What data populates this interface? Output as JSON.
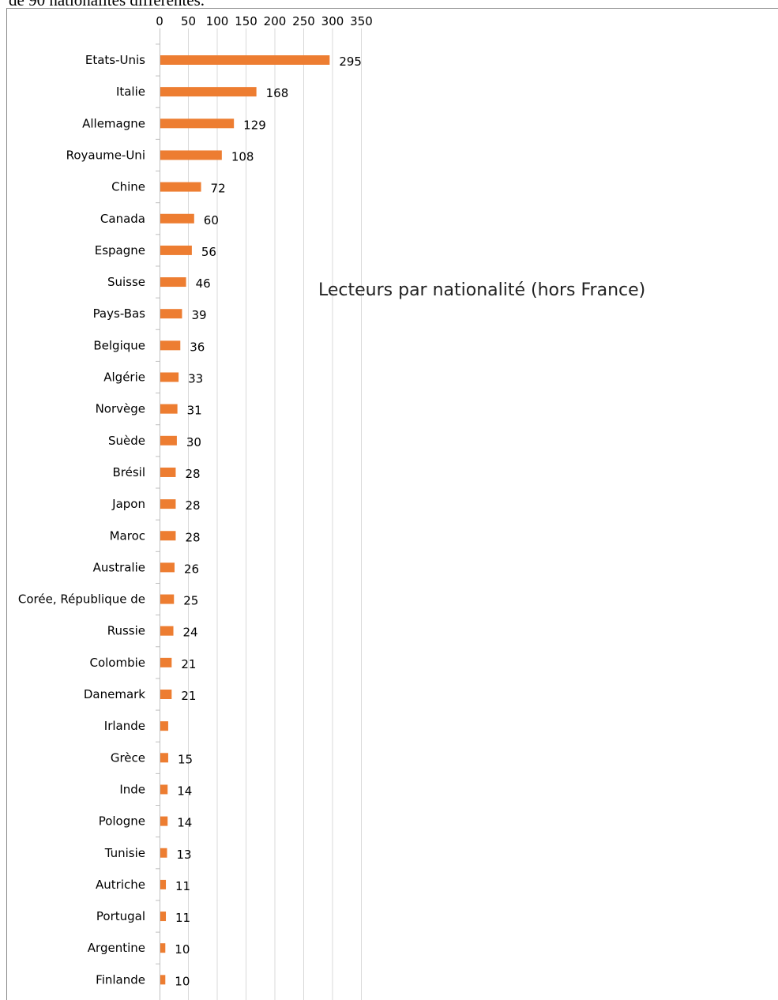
{
  "header_text": "de 90 nationalités différentes.",
  "chart_data": {
    "type": "bar",
    "orientation": "horizontal",
    "title": "Lecteurs par nationalité (hors France)",
    "xlim": [
      0,
      350
    ],
    "xticks": [
      0,
      50,
      100,
      150,
      200,
      250,
      300,
      350
    ],
    "axis_position": "top",
    "grid": true,
    "bar_color": "#ed7d31",
    "categories": [
      "Etats-Unis",
      "Italie",
      "Allemagne",
      "Royaume-Uni",
      "Chine",
      "Canada",
      "Espagne",
      "Suisse",
      "Pays-Bas",
      "Belgique",
      "Algérie",
      "Norvège",
      "Suède",
      "Brésil",
      "Japon",
      "Maroc",
      "Australie",
      "Corée, République de",
      "Russie",
      "Colombie",
      "Danemark",
      "Irlande",
      "Grèce",
      "Inde",
      "Pologne",
      "Tunisie",
      "Autriche",
      "Portugal",
      "Argentine",
      "Finlande"
    ],
    "values": [
      295,
      168,
      129,
      108,
      72,
      60,
      56,
      46,
      39,
      36,
      33,
      31,
      30,
      28,
      28,
      28,
      26,
      25,
      24,
      21,
      21,
      15,
      15,
      14,
      14,
      13,
      11,
      11,
      10,
      10
    ],
    "data_labels": [
      "295",
      "168",
      "129",
      "108",
      "72",
      "60",
      "56",
      "46",
      "39",
      "36",
      "33",
      "31",
      "30",
      "28",
      "28",
      "28",
      "26",
      "25",
      "24",
      "21",
      "21",
      "",
      "15",
      "14",
      "14",
      "13",
      "11",
      "11",
      "10",
      "10"
    ]
  }
}
